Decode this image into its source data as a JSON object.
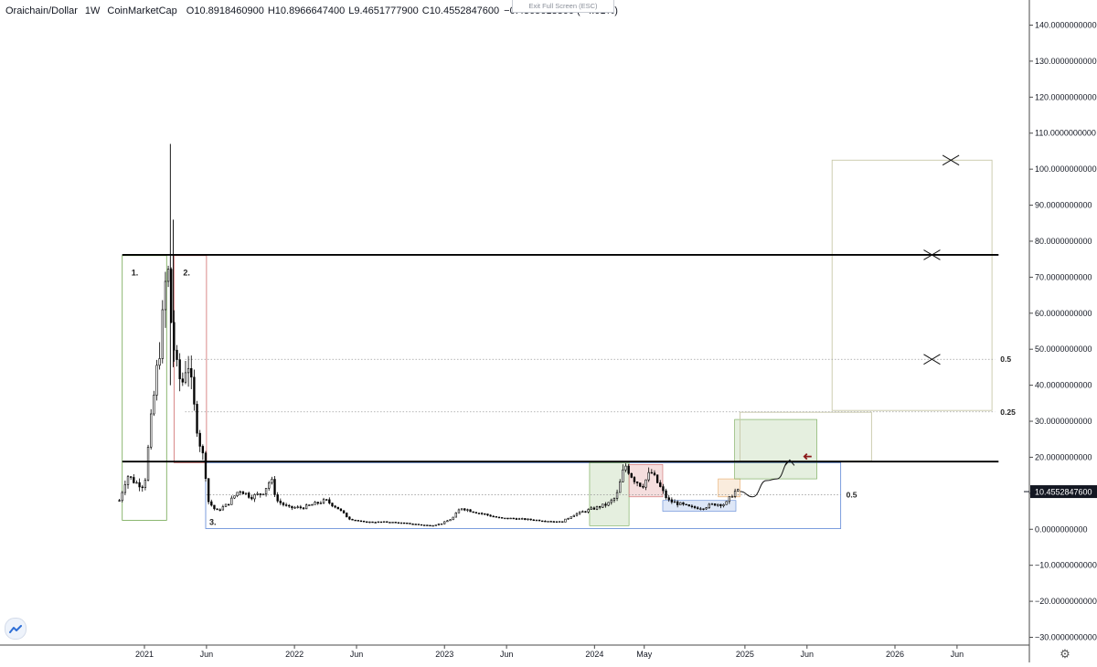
{
  "header": {
    "symbol": "Oraichain/Dollar",
    "timeframe": "1W",
    "source": "CoinMarketCap",
    "ohlc": [
      {
        "label": "O",
        "value": "10.8918460900"
      },
      {
        "label": "H",
        "value": "10.8966647400"
      },
      {
        "label": "L",
        "value": "9.4651777900"
      },
      {
        "label": "C",
        "value": "10.4552847600"
      }
    ],
    "change": "−0.4365613300 (−4.01%)"
  },
  "exit_fullscreen": "Exit Full Screen (ESC)",
  "icons": {
    "logo": "tradingview-logo-icon",
    "settings": "gear-icon"
  },
  "colors": {
    "candle": "#000000",
    "horizontal_line": "#000000",
    "dotted_line": "#9e9e9e",
    "box_green": "#6fa64e",
    "box_red": "#d06a6a",
    "box_blue": "#5c86d6",
    "box_orange": "#e7a766",
    "box_beige": "#c8c8a8",
    "arrow_red": "#8b1a1a",
    "price_label_bg": "#131722"
  },
  "chart_data": {
    "type": "candlestick",
    "symbol": "Oraichain/Dollar",
    "interval": "1W",
    "current_price": 10.45528476,
    "price_label": "10.4552847600",
    "y_range": [
      -31,
      144
    ],
    "y_ticks": [
      {
        "value": 140,
        "label": "140.0000000000"
      },
      {
        "value": 130,
        "label": "130.0000000000"
      },
      {
        "value": 120,
        "label": "120.0000000000"
      },
      {
        "value": 110,
        "label": "110.0000000000"
      },
      {
        "value": 100,
        "label": "100.0000000000"
      },
      {
        "value": 90,
        "label": "90.0000000000"
      },
      {
        "value": 80,
        "label": "80.0000000000"
      },
      {
        "value": 70,
        "label": "70.0000000000"
      },
      {
        "value": 60,
        "label": "60.0000000000"
      },
      {
        "value": 50,
        "label": "50.0000000000"
      },
      {
        "value": 40,
        "label": "40.0000000000"
      },
      {
        "value": 30,
        "label": "30.0000000000"
      },
      {
        "value": 20,
        "label": "20.0000000000"
      },
      {
        "value": 10,
        "label": "10.0000000000"
      },
      {
        "value": 0,
        "label": "0.0000000000"
      },
      {
        "value": -10,
        "label": "−10.0000000000"
      },
      {
        "value": -20,
        "label": "−20.0000000000"
      },
      {
        "value": -30,
        "label": "−30.0000000000"
      }
    ],
    "x_range": [
      "2020-10-01",
      "2026-10-15"
    ],
    "x_ticks": [
      {
        "date": "2021-01-01",
        "label": "2021"
      },
      {
        "date": "2021-06-01",
        "label": "Jun"
      },
      {
        "date": "2022-01-01",
        "label": "2022"
      },
      {
        "date": "2022-06-01",
        "label": "Jun"
      },
      {
        "date": "2023-01-01",
        "label": "2023"
      },
      {
        "date": "2023-06-01",
        "label": "Jun"
      },
      {
        "date": "2024-01-01",
        "label": "2024"
      },
      {
        "date": "2024-05-01",
        "label": "May"
      },
      {
        "date": "2025-01-01",
        "label": "2025"
      },
      {
        "date": "2025-06-01",
        "label": "Jun"
      },
      {
        "date": "2026-01-01",
        "label": "2026"
      },
      {
        "date": "2026-06-01",
        "label": "Jun"
      }
    ],
    "price_path": [
      [
        "2020-11-01",
        8
      ],
      [
        "2020-11-20",
        15
      ],
      [
        "2020-12-10",
        13
      ],
      [
        "2021-01-01",
        12
      ],
      [
        "2021-01-15",
        28
      ],
      [
        "2021-01-29",
        42
      ],
      [
        "2021-02-12",
        55
      ],
      [
        "2021-02-26",
        75
      ],
      [
        "2021-03-05",
        60
      ],
      [
        "2021-03-19",
        45
      ],
      [
        "2021-04-02",
        40
      ],
      [
        "2021-04-16",
        48
      ],
      [
        "2021-04-30",
        35
      ],
      [
        "2021-05-14",
        25
      ],
      [
        "2021-05-28",
        18
      ],
      [
        "2021-06-04",
        8
      ],
      [
        "2021-06-25",
        5
      ],
      [
        "2021-07-23",
        7
      ],
      [
        "2021-08-20",
        11
      ],
      [
        "2021-09-17",
        9
      ],
      [
        "2021-10-15",
        10
      ],
      [
        "2021-11-05",
        14
      ],
      [
        "2021-11-19",
        8
      ],
      [
        "2021-12-17",
        6
      ],
      [
        "2022-01-21",
        6
      ],
      [
        "2022-02-18",
        7
      ],
      [
        "2022-03-18",
        8
      ],
      [
        "2022-04-15",
        6
      ],
      [
        "2022-05-13",
        3
      ],
      [
        "2022-06-17",
        2
      ],
      [
        "2022-08-19",
        2
      ],
      [
        "2022-10-14",
        1.5
      ],
      [
        "2022-11-25",
        1
      ],
      [
        "2022-12-23",
        1.5
      ],
      [
        "2023-01-20",
        3
      ],
      [
        "2023-02-10",
        6
      ],
      [
        "2023-03-10",
        5
      ],
      [
        "2023-04-14",
        4
      ],
      [
        "2023-05-19",
        3
      ],
      [
        "2023-06-16",
        3
      ],
      [
        "2023-08-18",
        2.5
      ],
      [
        "2023-10-13",
        2
      ],
      [
        "2023-11-10",
        4
      ],
      [
        "2023-12-08",
        5
      ],
      [
        "2024-01-05",
        6
      ],
      [
        "2024-02-02",
        7
      ],
      [
        "2024-02-23",
        9
      ],
      [
        "2024-03-15",
        18
      ],
      [
        "2024-04-05",
        14
      ],
      [
        "2024-04-26",
        12
      ],
      [
        "2024-05-17",
        16
      ],
      [
        "2024-06-07",
        12
      ],
      [
        "2024-06-28",
        8
      ],
      [
        "2024-07-26",
        7
      ],
      [
        "2024-08-23",
        6
      ],
      [
        "2024-09-20",
        6
      ],
      [
        "2024-10-18",
        7
      ],
      [
        "2024-11-15",
        7
      ],
      [
        "2024-12-06",
        10.5
      ],
      [
        "2024-12-20",
        10.46
      ]
    ],
    "spike_wicks": [
      {
        "date": "2021-03-05",
        "high": 107,
        "low": 40
      },
      {
        "date": "2021-03-12",
        "high": 86,
        "low": 45
      }
    ],
    "horizontal_lines": [
      {
        "price": 76.2,
        "from": "2020-11-08",
        "to": "2026-09-10",
        "style": "solid"
      },
      {
        "price": 18.8,
        "from": "2020-11-08",
        "to": "2026-09-10",
        "style": "solid"
      },
      {
        "price": 47.2,
        "from": "2021-04-10",
        "to": "2026-09-01",
        "style": "dotted",
        "label": "0.5"
      },
      {
        "price": 32.6,
        "from": "2021-04-10",
        "to": "2026-09-01",
        "style": "dotted",
        "label": "0.25"
      },
      {
        "price": 9.6,
        "from": "2021-06-01",
        "to": "2025-08-22",
        "style": "dotted",
        "label": "0.5"
      }
    ],
    "boxes": [
      {
        "label": "1.",
        "from": "2020-11-08",
        "to": "2021-02-24",
        "top": 76,
        "bottom": 2.5,
        "color": "green"
      },
      {
        "label": "2.",
        "from": "2021-03-14",
        "to": "2021-06-01",
        "top": 76,
        "bottom": 18.5,
        "color": "red"
      },
      {
        "label": "3.",
        "from": "2021-05-30",
        "to": "2025-08-22",
        "top": 18.5,
        "bottom": 0.2,
        "color": "blue"
      },
      {
        "label": "",
        "from": "2023-12-20",
        "to": "2024-03-25",
        "top": 18.5,
        "bottom": 1,
        "color": "green_fill"
      },
      {
        "label": "",
        "from": "2024-03-25",
        "to": "2024-06-15",
        "top": 18,
        "bottom": 9,
        "color": "red_fill"
      },
      {
        "label": "",
        "from": "2024-06-15",
        "to": "2024-12-10",
        "top": 8,
        "bottom": 5,
        "color": "blue_fill"
      },
      {
        "label": "",
        "from": "2024-10-28",
        "to": "2024-12-20",
        "top": 14,
        "bottom": 9,
        "color": "orange_fill"
      },
      {
        "label": "",
        "from": "2024-12-07",
        "to": "2025-06-25",
        "top": 30.5,
        "bottom": 14,
        "color": "green_fill"
      },
      {
        "label": "",
        "from": "2024-12-20",
        "to": "2025-11-05",
        "top": 32.5,
        "bottom": 19,
        "color": "beige"
      },
      {
        "label": "",
        "from": "2025-08-01",
        "to": "2026-08-25",
        "top": 102.5,
        "bottom": 33,
        "color": "beige"
      }
    ],
    "x_marks": [
      {
        "date": "2026-05-17",
        "price": 102.5
      },
      {
        "date": "2026-04-01",
        "price": 76.2
      },
      {
        "date": "2026-04-01",
        "price": 47.2
      }
    ],
    "projection_path": [
      [
        "2024-12-20",
        10.5
      ],
      [
        "2025-01-20",
        9
      ],
      [
        "2025-02-22",
        13.5
      ],
      [
        "2025-03-20",
        14
      ],
      [
        "2025-04-20",
        19
      ]
    ],
    "left_arrow": {
      "date": "2025-06-01",
      "price": 20.2
    }
  }
}
